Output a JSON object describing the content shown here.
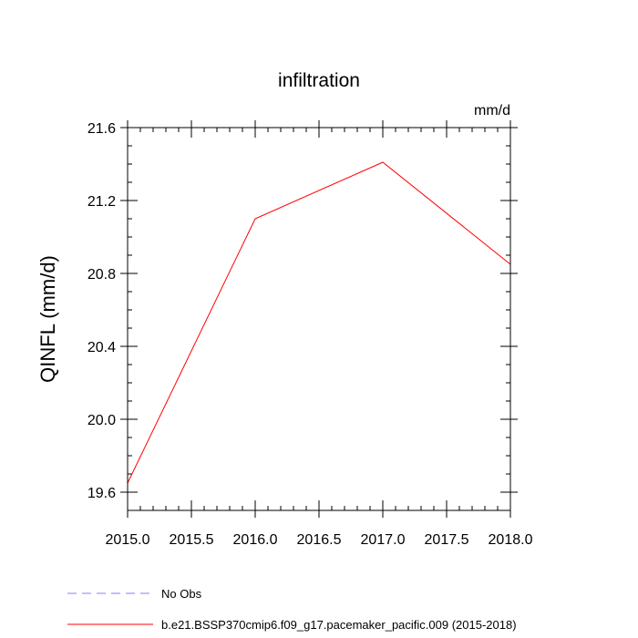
{
  "chart_data": {
    "type": "line",
    "title": "infiltration",
    "units": "mm/d",
    "xlabel": "",
    "ylabel": "QINFL  (mm/d)",
    "xlim": [
      2015.0,
      2018.0
    ],
    "ylim": [
      19.5,
      21.6
    ],
    "x_ticks": [
      "2015.0",
      "2015.5",
      "2016.0",
      "2016.5",
      "2017.0",
      "2017.5",
      "2018.0"
    ],
    "y_ticks": [
      "19.6",
      "20.0",
      "20.4",
      "20.8",
      "21.2",
      "21.6"
    ],
    "x": [
      2015.0,
      2016.0,
      2017.0,
      2018.0
    ],
    "series": [
      {
        "name": "b.e21.BSSP370cmip6.f09_g17.pacemaker_pacific.009 (2015-2018)",
        "values": [
          19.65,
          21.1,
          21.41,
          20.85
        ],
        "color": "#ff0000"
      }
    ],
    "legend": [
      {
        "label": "No Obs",
        "color": "#8080ff",
        "style": "dashed"
      },
      {
        "label": "b.e21.BSSP370cmip6.f09_g17.pacemaker_pacific.009 (2015-2018)",
        "color": "#ff0000",
        "style": "solid"
      }
    ],
    "legend_position": "bottom-left",
    "grid": false
  }
}
